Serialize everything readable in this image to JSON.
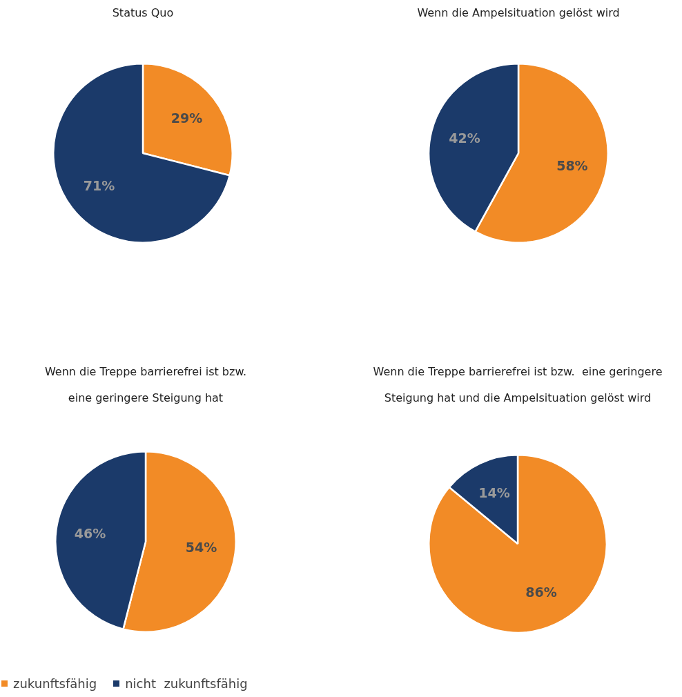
{
  "chart_data": [
    {
      "type": "pie",
      "title": "Status Quo",
      "categories": [
        null,
        null
      ],
      "values": [
        29,
        71
      ],
      "colors": [
        "#f28b26",
        "#1b3a6a"
      ],
      "value_labels": [
        "29%",
        "71%"
      ]
    },
    {
      "type": "pie",
      "title": "Wenn die Ampelsituation gelöst wird",
      "categories": [
        null,
        null
      ],
      "values": [
        58,
        42
      ],
      "colors": [
        "#f28b26",
        "#1b3a6a"
      ],
      "value_labels": [
        "58%",
        "42%"
      ]
    },
    {
      "type": "pie",
      "title": "Wenn die Treppe barrierefrei ist bzw. eine geringere Steigung hat",
      "categories": [
        "zukunftsfähig",
        "nicht  zukunftsfähig"
      ],
      "values": [
        54,
        46
      ],
      "colors": [
        "#f28b26",
        "#1b3a6a"
      ],
      "value_labels": [
        "54%",
        "46%"
      ],
      "legend": "bottom left"
    },
    {
      "type": "pie",
      "title": "Wenn die Treppe barrierefrei ist bzw.  eine geringere Steigung hat und die Ampelsituation gelöst wird",
      "categories": [
        null,
        null
      ],
      "values": [
        86,
        14
      ],
      "colors": [
        "#f28b26",
        "#1b3a6a"
      ],
      "value_labels": [
        "86%",
        "14%"
      ]
    }
  ]
}
